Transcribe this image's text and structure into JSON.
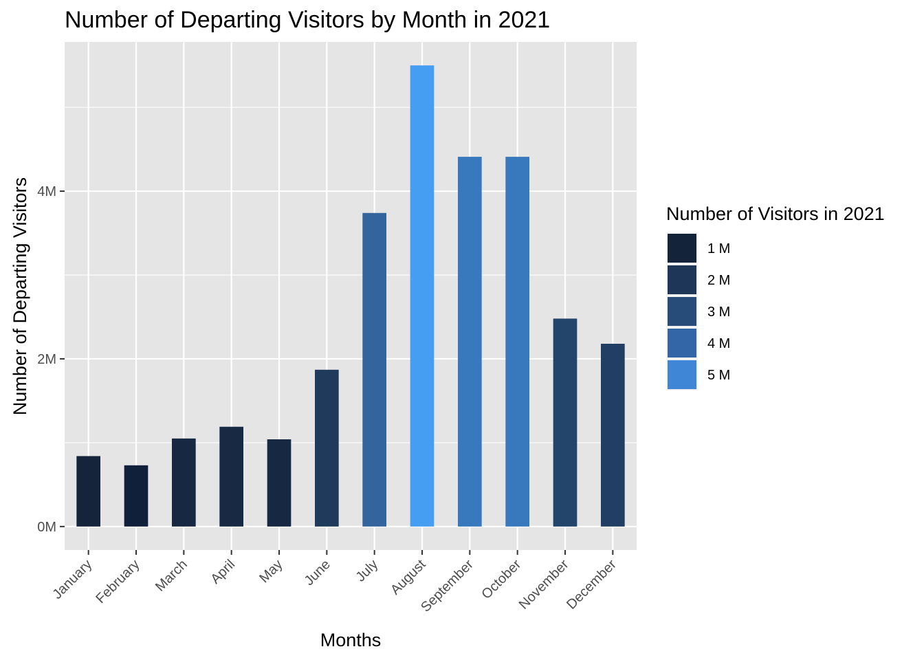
{
  "chart_data": {
    "type": "bar",
    "title": "Number of Departing Visitors by Month in 2021",
    "xlabel": "Months",
    "ylabel": "Number of Departing Visitors",
    "categories": [
      "January",
      "February",
      "March",
      "April",
      "May",
      "June",
      "July",
      "August",
      "September",
      "October",
      "November",
      "December"
    ],
    "values": [
      840000,
      730000,
      1050000,
      1190000,
      1040000,
      1870000,
      3740000,
      5500000,
      4410000,
      4410000,
      2480000,
      2180000
    ],
    "bar_colors": [
      "#15243b",
      "#11203a",
      "#172942",
      "#172943",
      "#172842",
      "#1f3a5b",
      "#33649d",
      "#469ef3",
      "#3879bd",
      "#3879bd",
      "#23446b",
      "#213f64"
    ],
    "yticks": [
      {
        "value": 0,
        "label": "0M"
      },
      {
        "value": 2000000,
        "label": "2M"
      },
      {
        "value": 4000000,
        "label": "4M"
      }
    ],
    "ylim": [
      -280000,
      5780000
    ],
    "grid": true,
    "legend": {
      "title": "Number of Visitors in 2021",
      "position": "right",
      "items": [
        {
          "label": "1 M",
          "color": "#132339"
        },
        {
          "label": "2 M",
          "color": "#1e3657"
        },
        {
          "label": "3 M",
          "color": "#284c7a"
        },
        {
          "label": "4 M",
          "color": "#3366a6"
        },
        {
          "label": "5 M",
          "color": "#3f86d6"
        }
      ]
    },
    "colors": {
      "panel_background": "#e5e5e5",
      "grid_line": "#ffffff",
      "tick_mark": "#333333"
    }
  }
}
